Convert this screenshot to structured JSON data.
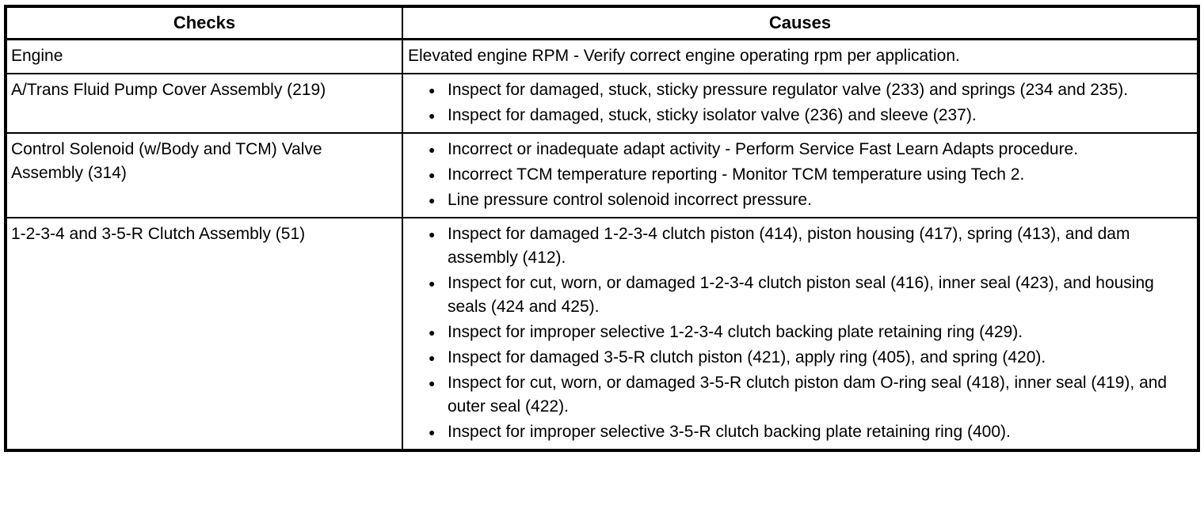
{
  "icons": {
    "bullet": "●"
  },
  "table": {
    "headers": [
      "Checks",
      "Causes"
    ],
    "rows": [
      {
        "check": "Engine",
        "bulleted": false,
        "causes": [
          "Elevated engine RPM - Verify correct engine operating rpm per application."
        ]
      },
      {
        "check": "A/Trans Fluid Pump Cover Assembly (219)",
        "bulleted": true,
        "causes": [
          "Inspect for damaged, stuck, sticky pressure regulator valve (233) and springs (234 and 235).",
          "Inspect for damaged, stuck, sticky isolator valve (236) and sleeve (237)."
        ]
      },
      {
        "check": "Control Solenoid (w/Body and TCM) Valve Assembly (314)",
        "bulleted": true,
        "causes": [
          "Incorrect or inadequate adapt activity - Perform Service Fast Learn Adapts procedure.",
          "Incorrect TCM temperature reporting - Monitor TCM temperature using Tech 2.",
          "Line pressure control solenoid incorrect pressure."
        ]
      },
      {
        "check": "1-2-3-4 and 3-5-R Clutch Assembly (51)",
        "bulleted": true,
        "causes": [
          "Inspect for damaged 1-2-3-4 clutch piston (414), piston housing (417), spring (413), and dam assembly (412).",
          "Inspect for cut, worn, or damaged 1-2-3-4 clutch piston seal (416), inner seal (423), and housing seals (424 and 425).",
          "Inspect for improper selective 1-2-3-4 clutch backing plate retaining ring (429).",
          "Inspect for damaged 3-5-R clutch piston (421), apply ring (405), and spring (420).",
          "Inspect for cut, worn, or damaged 3-5-R clutch piston dam O-ring seal (418), inner seal (419), and outer seal (422).",
          "Inspect for improper selective 3-5-R clutch backing plate retaining ring (400)."
        ]
      }
    ]
  }
}
